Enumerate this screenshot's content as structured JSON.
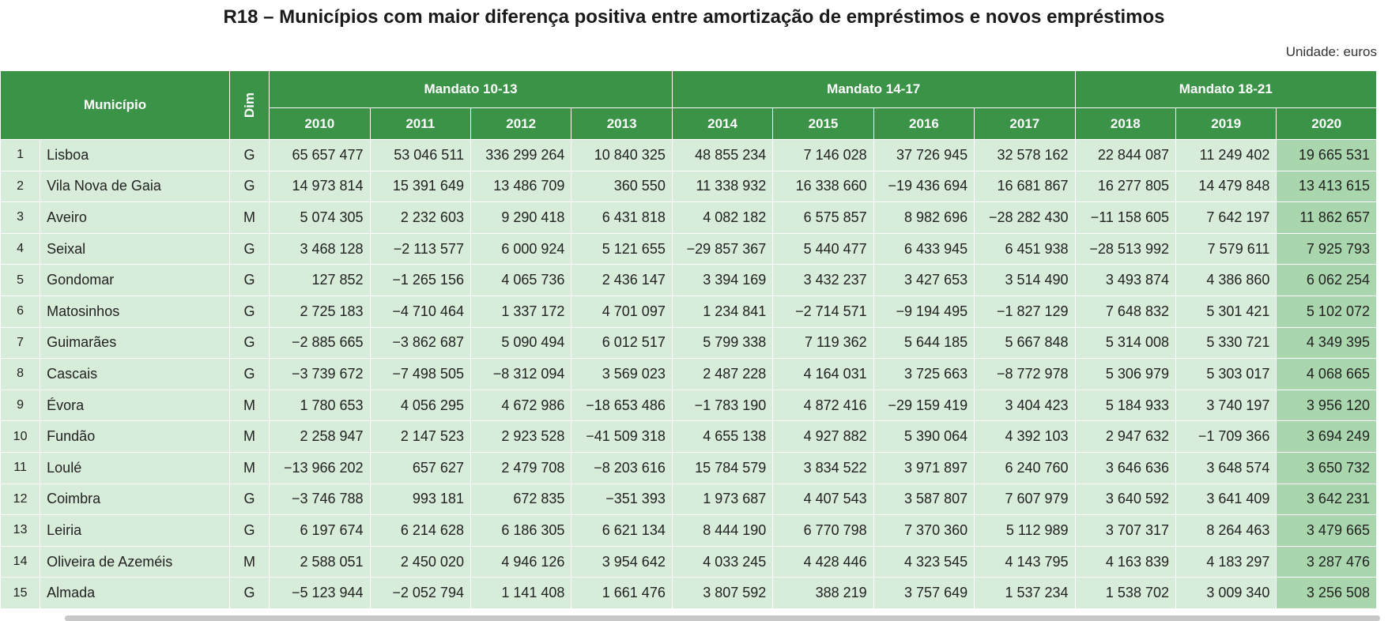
{
  "title": "R18 – Municípios com maior diferença positiva entre amortização de empréstimos e novos empréstimos",
  "unit": "Unidade: euros",
  "headers": {
    "municipio": "Município",
    "dim": "Dim",
    "mandatos": [
      "Mandato 10-13",
      "Mandato 14-17",
      "Mandato 18-21"
    ],
    "years": [
      "2010",
      "2011",
      "2012",
      "2013",
      "2014",
      "2015",
      "2016",
      "2017",
      "2018",
      "2019",
      "2020"
    ]
  },
  "rows": [
    {
      "n": "1",
      "name": "Lisboa",
      "dim": "G",
      "v": [
        "65 657 477",
        "53 046 511",
        "336 299 264",
        "10 840 325",
        "48 855 234",
        "7 146 028",
        "37 726 945",
        "32 578 162",
        "22 844 087",
        "11 249 402",
        "19 665 531"
      ]
    },
    {
      "n": "2",
      "name": "Vila Nova de Gaia",
      "dim": "G",
      "v": [
        "14 973 814",
        "15 391 649",
        "13 486 709",
        "360 550",
        "11 338 932",
        "16 338 660",
        "−19 436 694",
        "16 681 867",
        "16 277 805",
        "14 479 848",
        "13 413 615"
      ]
    },
    {
      "n": "3",
      "name": "Aveiro",
      "dim": "M",
      "v": [
        "5 074 305",
        "2 232 603",
        "9 290 418",
        "6 431 818",
        "4 082 182",
        "6 575 857",
        "8 982 696",
        "−28 282 430",
        "−11 158 605",
        "7 642 197",
        "11 862 657"
      ]
    },
    {
      "n": "4",
      "name": "Seixal",
      "dim": "G",
      "v": [
        "3 468 128",
        "−2 113 577",
        "6 000 924",
        "5 121 655",
        "−29 857 367",
        "5 440 477",
        "6 433 945",
        "6 451 938",
        "−28 513 992",
        "7 579 611",
        "7 925 793"
      ]
    },
    {
      "n": "5",
      "name": "Gondomar",
      "dim": "G",
      "v": [
        "127 852",
        "−1 265 156",
        "4 065 736",
        "2 436 147",
        "3 394 169",
        "3 432 237",
        "3 427 653",
        "3 514 490",
        "3 493 874",
        "4 386 860",
        "6 062 254"
      ]
    },
    {
      "n": "6",
      "name": "Matosinhos",
      "dim": "G",
      "v": [
        "2 725 183",
        "−4 710 464",
        "1 337 172",
        "4 701 097",
        "1 234 841",
        "−2 714 571",
        "−9 194 495",
        "−1 827 129",
        "7 648 832",
        "5 301 421",
        "5 102 072"
      ]
    },
    {
      "n": "7",
      "name": "Guimarães",
      "dim": "G",
      "v": [
        "−2 885 665",
        "−3 862 687",
        "5 090 494",
        "6 012 517",
        "5 799 338",
        "7 119 362",
        "5 644 185",
        "5 667 848",
        "5 314 008",
        "5 330 721",
        "4 349 395"
      ]
    },
    {
      "n": "8",
      "name": "Cascais",
      "dim": "G",
      "v": [
        "−3 739 672",
        "−7 498 505",
        "−8 312 094",
        "3 569 023",
        "2 487 228",
        "4 164 031",
        "3 725 663",
        "−8 772 978",
        "5 306 979",
        "5 303 017",
        "4 068 665"
      ]
    },
    {
      "n": "9",
      "name": "Évora",
      "dim": "M",
      "v": [
        "1 780 653",
        "4 056 295",
        "4 672 986",
        "−18 653 486",
        "−1 783 190",
        "4 872 416",
        "−29 159 419",
        "3 404 423",
        "5 184 933",
        "3 740 197",
        "3 956 120"
      ]
    },
    {
      "n": "10",
      "name": "Fundão",
      "dim": "M",
      "v": [
        "2 258 947",
        "2 147 523",
        "2 923 528",
        "−41 509 318",
        "4 655 138",
        "4 927 882",
        "5 390 064",
        "4 392 103",
        "2 947 632",
        "−1 709 366",
        "3 694 249"
      ]
    },
    {
      "n": "11",
      "name": "Loulé",
      "dim": "M",
      "v": [
        "−13 966 202",
        "657 627",
        "2 479 708",
        "−8 203 616",
        "15 784 579",
        "3 834 522",
        "3 971 897",
        "6 240 760",
        "3 646 636",
        "3 648 574",
        "3 650 732"
      ]
    },
    {
      "n": "12",
      "name": "Coimbra",
      "dim": "G",
      "v": [
        "−3 746 788",
        "993 181",
        "672 835",
        "−351 393",
        "1 973 687",
        "4 407 543",
        "3 587 807",
        "7 607 979",
        "3 640 592",
        "3 641 409",
        "3 642 231"
      ]
    },
    {
      "n": "13",
      "name": "Leiria",
      "dim": "G",
      "v": [
        "6 197 674",
        "6 214 628",
        "6 186 305",
        "6 621 134",
        "8 444 190",
        "6 770 798",
        "7 370 360",
        "5 112 989",
        "3 707 317",
        "8 264 463",
        "3 479 665"
      ]
    },
    {
      "n": "14",
      "name": "Oliveira de Azeméis",
      "dim": "M",
      "v": [
        "2 588 051",
        "2 450 020",
        "4 946 126",
        "3 954 642",
        "4 033 245",
        "4 428 446",
        "4 323 545",
        "4 143 795",
        "4 163 839",
        "4 183 297",
        "3 287 476"
      ]
    },
    {
      "n": "15",
      "name": "Almada",
      "dim": "G",
      "v": [
        "−5 123 944",
        "−2 052 794",
        "1 141 408",
        "1 661 476",
        "3 807 592",
        "388 219",
        "3 757 649",
        "1 537 234",
        "1 538 702",
        "3 009 340",
        "3 256 508"
      ]
    }
  ]
}
